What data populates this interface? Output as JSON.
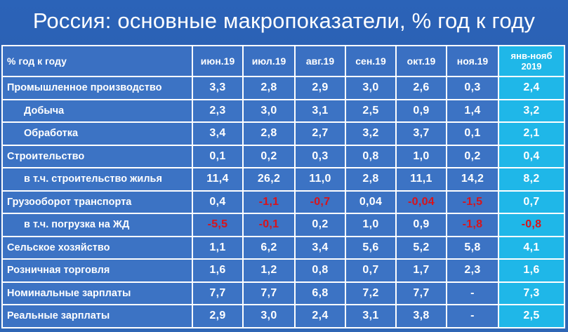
{
  "title": "Россия: основные макропоказатели, % год к году",
  "table": {
    "header": {
      "label": "% год к году",
      "months": [
        "июн.19",
        "июл.19",
        "авг.19",
        "сен.19",
        "окт.19",
        "ноя.19"
      ],
      "total_line1": "янв-нояб",
      "total_line2": "2019"
    },
    "rows": [
      {
        "label": "Промышленное производство",
        "values": [
          "3,3",
          "2,8",
          "2,9",
          "3,0",
          "2,6",
          "0,3"
        ],
        "total": "2,4"
      },
      {
        "label": "Добыча",
        "values": [
          "2,3",
          "3,0",
          "3,1",
          "2,5",
          "0,9",
          "1,4"
        ],
        "total": "3,2"
      },
      {
        "label": "Обработка",
        "values": [
          "3,4",
          "2,8",
          "2,7",
          "3,2",
          "3,7",
          "0,1"
        ],
        "total": "2,1"
      },
      {
        "label": "Строительство",
        "values": [
          "0,1",
          "0,2",
          "0,3",
          "0,8",
          "1,0",
          "0,2"
        ],
        "total": "0,4"
      },
      {
        "label": "в т.ч. строительство жилья",
        "values": [
          "11,4",
          "26,2",
          "11,0",
          "2,8",
          "11,1",
          "14,2"
        ],
        "total": "8,2"
      },
      {
        "label": "Грузооборот транспорта",
        "values": [
          "0,4",
          "-1,1",
          "-0,7",
          "0,04",
          "-0,04",
          "-1,5"
        ],
        "total": "0,7"
      },
      {
        "label": "в т.ч. погрузка на ЖД",
        "values": [
          "-5,5",
          "-0,1",
          "0,2",
          "1,0",
          "0,9",
          "-1,8"
        ],
        "total": "-0,8"
      },
      {
        "label": "Сельское хозяйство",
        "values": [
          "1,1",
          "6,2",
          "3,4",
          "5,6",
          "5,2",
          "5,8"
        ],
        "total": "4,1"
      },
      {
        "label": "Розничная торговля",
        "values": [
          "1,6",
          "1,2",
          "0,8",
          "0,7",
          "1,7",
          "2,3"
        ],
        "total": "1,6"
      },
      {
        "label": "Номинальные зарплаты",
        "values": [
          "7,7",
          "7,7",
          "6,8",
          "7,2",
          "7,7",
          "-"
        ],
        "total": "7,3"
      },
      {
        "label": "Реальные зарплаты",
        "values": [
          "2,9",
          "3,0",
          "2,4",
          "3,1",
          "3,8",
          "-"
        ],
        "total": "2,5"
      }
    ]
  },
  "colors": {
    "background": "#2a5fb0",
    "cell": "#3c73c4",
    "highlight_column": "#1fb7e8",
    "negative_text": "#d8131b",
    "text": "#ffffff",
    "grid_lines": "#ffffff"
  }
}
